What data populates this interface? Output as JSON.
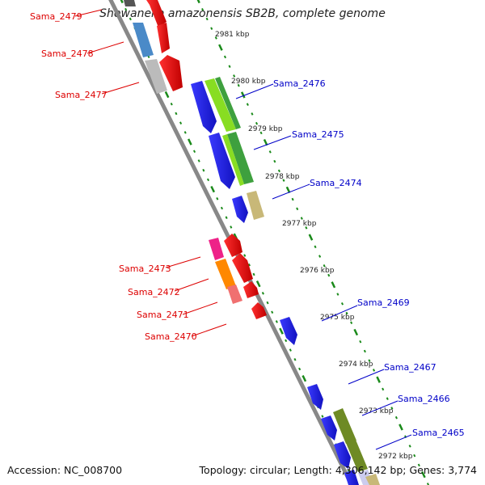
{
  "title": "Shewanella amazonensis SB2B, complete genome",
  "footer": {
    "accession_label": "Accession:",
    "accession": "NC_008700",
    "topology_label": "Topology:",
    "topology": "circular",
    "length_label": "Length:",
    "length": "4,306,142 bp",
    "genes_label": "Genes:",
    "genes": "3,774"
  },
  "colors": {
    "backbone": "#888888",
    "tick": "#1a8a1a",
    "forward_label": "#0000c8",
    "reverse_label": "#dd0000"
  },
  "kbp_labels": [
    "2981 kbp",
    "2980 kbp",
    "2979 kbp",
    "2978 kbp",
    "2977 kbp",
    "2976 kbp",
    "2975 kbp",
    "2974 kbp",
    "2973 kbp",
    "2972 kbp"
  ],
  "genes_forward": [
    {
      "label": "Sama_2476",
      "color": "#2020ee"
    },
    {
      "label": "Sama_2475",
      "color": "#2020ee"
    },
    {
      "label": "Sama_2474",
      "color": "#2020ee"
    },
    {
      "label": "Sama_2469",
      "color": "#2020ee"
    },
    {
      "label": "Sama_2467",
      "color": "#2020ee"
    },
    {
      "label": "Sama_2466",
      "color": "#2020ee"
    },
    {
      "label": "Sama_2465",
      "color": "#2020ee"
    }
  ],
  "genes_reverse": [
    {
      "label": "Sama_2479",
      "color": "#ee1111"
    },
    {
      "label": "Sama_2478",
      "color": "#ee1111"
    },
    {
      "label": "Sama_2477",
      "color": "#ee1111"
    },
    {
      "label": "Sama_2473",
      "color": "#ee1111"
    },
    {
      "label": "Sama_2472",
      "color": "#ee1111"
    },
    {
      "label": "Sama_2471",
      "color": "#ee1111"
    },
    {
      "label": "Sama_2470",
      "color": "#ee1111"
    }
  ],
  "category_colors": [
    "#4a8ac8",
    "#bbbbbb",
    "#88dd22",
    "#3ea03e",
    "#c8b878",
    "#ee2288",
    "#ff8800",
    "#f07070",
    "#6e8a24",
    "#ccccee"
  ]
}
